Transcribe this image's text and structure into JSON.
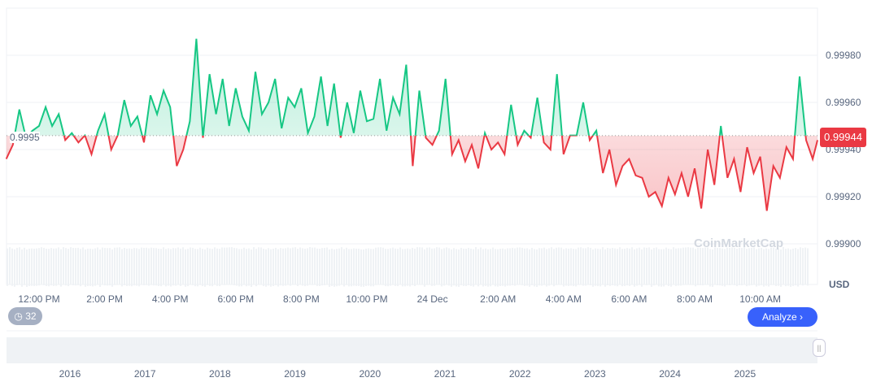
{
  "chart_data": {
    "type": "line",
    "title": "",
    "ylabel": "USD",
    "ylim": [
      0.9988,
      1.0
    ],
    "y_ticks": [
      "0.99980",
      "0.99960",
      "0.99940",
      "0.99920",
      "0.99900"
    ],
    "x_ticks": [
      "12:00 PM",
      "2:00 PM",
      "4:00 PM",
      "6:00 PM",
      "8:00 PM",
      "10:00 PM",
      "24 Dec",
      "2:00 AM",
      "4:00 AM",
      "6:00 AM",
      "8:00 AM",
      "10:00 AM"
    ],
    "x_start_hour": 11.0,
    "x_step_hours": 0.2,
    "baseline": 0.999459,
    "baseline_label": "0.9995",
    "current_price": "0.99944",
    "values": [
      0.99936,
      0.99942,
      0.99957,
      0.99945,
      0.99948,
      0.9995,
      0.99958,
      0.9995,
      0.99955,
      0.99944,
      0.99947,
      0.99943,
      0.99946,
      0.99938,
      0.99948,
      0.99955,
      0.9994,
      0.99946,
      0.99961,
      0.9995,
      0.99954,
      0.99943,
      0.99963,
      0.99955,
      0.99965,
      0.99958,
      0.99933,
      0.9994,
      0.99952,
      0.99987,
      0.99945,
      0.99972,
      0.99955,
      0.9997,
      0.9995,
      0.99966,
      0.99954,
      0.99948,
      0.99973,
      0.99955,
      0.9996,
      0.9997,
      0.99949,
      0.99962,
      0.99958,
      0.99966,
      0.99947,
      0.99954,
      0.99971,
      0.9995,
      0.99968,
      0.99945,
      0.9996,
      0.99947,
      0.99965,
      0.99952,
      0.99953,
      0.9997,
      0.99948,
      0.99962,
      0.99955,
      0.99976,
      0.99933,
      0.99965,
      0.99945,
      0.99942,
      0.99948,
      0.9997,
      0.99938,
      0.99944,
      0.99935,
      0.99942,
      0.99932,
      0.99947,
      0.9994,
      0.99943,
      0.99938,
      0.99959,
      0.99942,
      0.99948,
      0.99945,
      0.99962,
      0.99943,
      0.9994,
      0.99972,
      0.99938,
      0.99946,
      0.99946,
      0.9996,
      0.99944,
      0.99948,
      0.9993,
      0.9994,
      0.99925,
      0.99933,
      0.99936,
      0.99929,
      0.99928,
      0.9992,
      0.99922,
      0.99916,
      0.99928,
      0.99921,
      0.9993,
      0.9992,
      0.99932,
      0.99915,
      0.9994,
      0.99925,
      0.9995,
      0.99928,
      0.99936,
      0.99922,
      0.99941,
      0.9993,
      0.99937,
      0.99914,
      0.99933,
      0.99928,
      0.99941,
      0.99936,
      0.99971,
      0.99944,
      0.99936,
      0.99944,
      0.99944
    ],
    "navigator_years": [
      "2016",
      "2017",
      "2018",
      "2019",
      "2020",
      "2021",
      "2022",
      "2023",
      "2024",
      "2025"
    ]
  },
  "ui": {
    "history_count": "32",
    "analyze_label": "Analyze ›",
    "watermark": "CoinMarketCap",
    "handle": "||"
  },
  "colors": {
    "up": "#16c784",
    "down": "#ea3943",
    "accent": "#3861fb"
  }
}
